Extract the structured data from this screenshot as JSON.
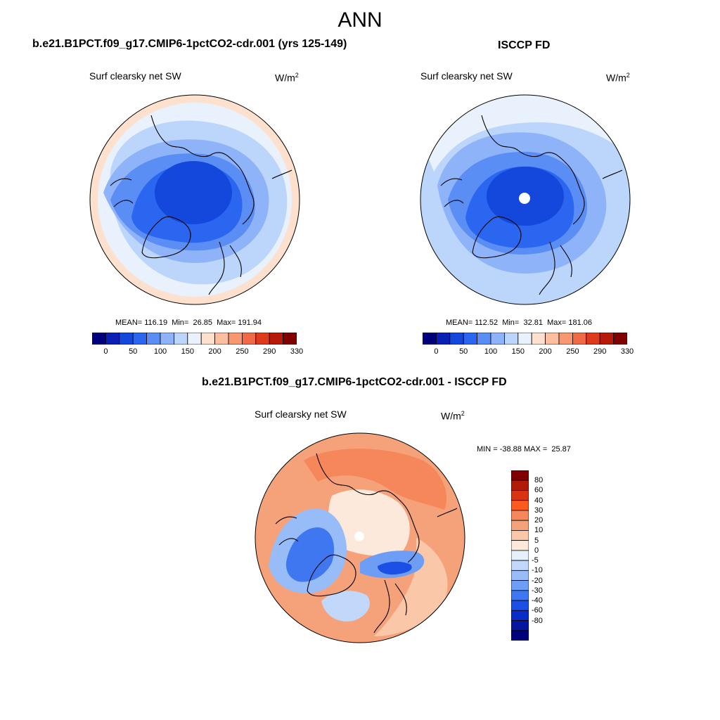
{
  "figure": {
    "title": "ANN"
  },
  "panels": {
    "model": {
      "title": "b.e21.B1PCT.f09_g17.CMIP6-1pctCO2-cdr.001 (yrs 125-149)",
      "variable": "Surf clearsky net SW",
      "units_base": "W/m",
      "units_exp": "2",
      "stats": "MEAN= 116.19  Min=  26.85  Max= 191.94"
    },
    "obs": {
      "title": "ISCCP FD",
      "variable": "Surf clearsky net SW",
      "units_base": "W/m",
      "units_exp": "2",
      "stats": "MEAN= 112.52  Min=  32.81  Max= 181.06"
    },
    "diff": {
      "title": "b.e21.B1PCT.f09_g17.CMIP6-1pctCO2-cdr.001 - ISCCP FD",
      "variable": "Surf clearsky net SW",
      "units_base": "W/m",
      "units_exp": "2",
      "stats": "MIN = -38.88 MAX =  25.87"
    }
  },
  "colorbars": {
    "abs_colors": [
      "#00007d",
      "#0a1fb4",
      "#1447dc",
      "#2b66f0",
      "#5a8ef5",
      "#8fb3f8",
      "#bcd5fb",
      "#e8f1fc",
      "#fde0cd",
      "#fbbfa0",
      "#f79872",
      "#f06b45",
      "#de3a1c",
      "#b81a0a",
      "#800000"
    ],
    "abs_ticks": [
      "0",
      "50",
      "100",
      "150",
      "200",
      "250",
      "290",
      "330"
    ],
    "diff_colors": [
      "#800000",
      "#b01c08",
      "#d83412",
      "#fd5a20",
      "#f5875a",
      "#f5a27a",
      "#fbc7a9",
      "#fde9dc",
      "#e6f0fc",
      "#c2d8fb",
      "#97bcf8",
      "#6d9df5",
      "#3f77f0",
      "#1b4fe6",
      "#0a2dc8",
      "#0616a0",
      "#00007d"
    ],
    "diff_labels": [
      "80",
      "60",
      "40",
      "30",
      "20",
      "10",
      "5",
      "0",
      "-5",
      "-10",
      "-20",
      "-30",
      "-40",
      "-60",
      "-80"
    ]
  },
  "chart_data": {
    "type": "heatmap",
    "projection": "north-polar-stereographic",
    "maps": [
      {
        "name": "model",
        "mean": 116.19,
        "min": 26.85,
        "max": 191.94
      },
      {
        "name": "obs",
        "mean": 112.52,
        "min": 32.81,
        "max": 181.06
      },
      {
        "name": "diff",
        "min": -38.88,
        "max": 25.87
      }
    ]
  }
}
